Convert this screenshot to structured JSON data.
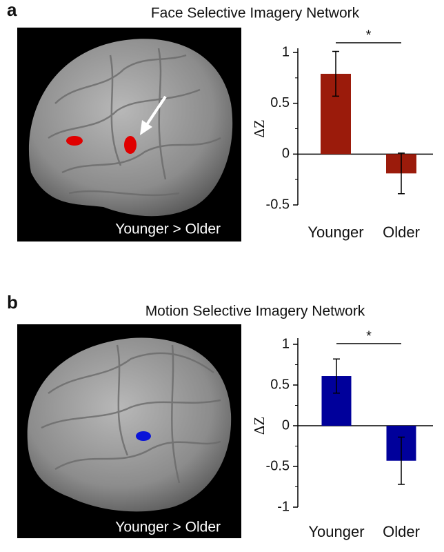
{
  "chart_data": [
    {
      "type": "bar",
      "panel_label": "a",
      "title": "Face Selective Imagery Network",
      "image_caption": "Younger > Older",
      "ylabel": "ΔZ",
      "categories": [
        "Younger",
        "Older"
      ],
      "values": [
        0.79,
        -0.19
      ],
      "errors": [
        0.22,
        0.2
      ],
      "color": "#9b1b0b",
      "ylim": [
        -0.5,
        1
      ],
      "yticks": [
        -0.5,
        0,
        0.5,
        1
      ],
      "minor_yticks": [
        -0.25,
        0.25,
        0.75
      ],
      "annotation": "*"
    },
    {
      "type": "bar",
      "panel_label": "b",
      "title": "Motion Selective Imagery Network",
      "image_caption": "Younger > Older",
      "ylabel": "ΔZ",
      "categories": [
        "Younger",
        "Older"
      ],
      "values": [
        0.61,
        -0.43
      ],
      "errors": [
        0.21,
        0.29
      ],
      "color": "#00009b",
      "ylim": [
        -1,
        1
      ],
      "yticks": [
        -1,
        -0.5,
        0,
        0.5,
        1
      ],
      "minor_yticks": [
        -0.75,
        -0.25,
        0.25,
        0.75
      ],
      "annotation": "*"
    }
  ]
}
